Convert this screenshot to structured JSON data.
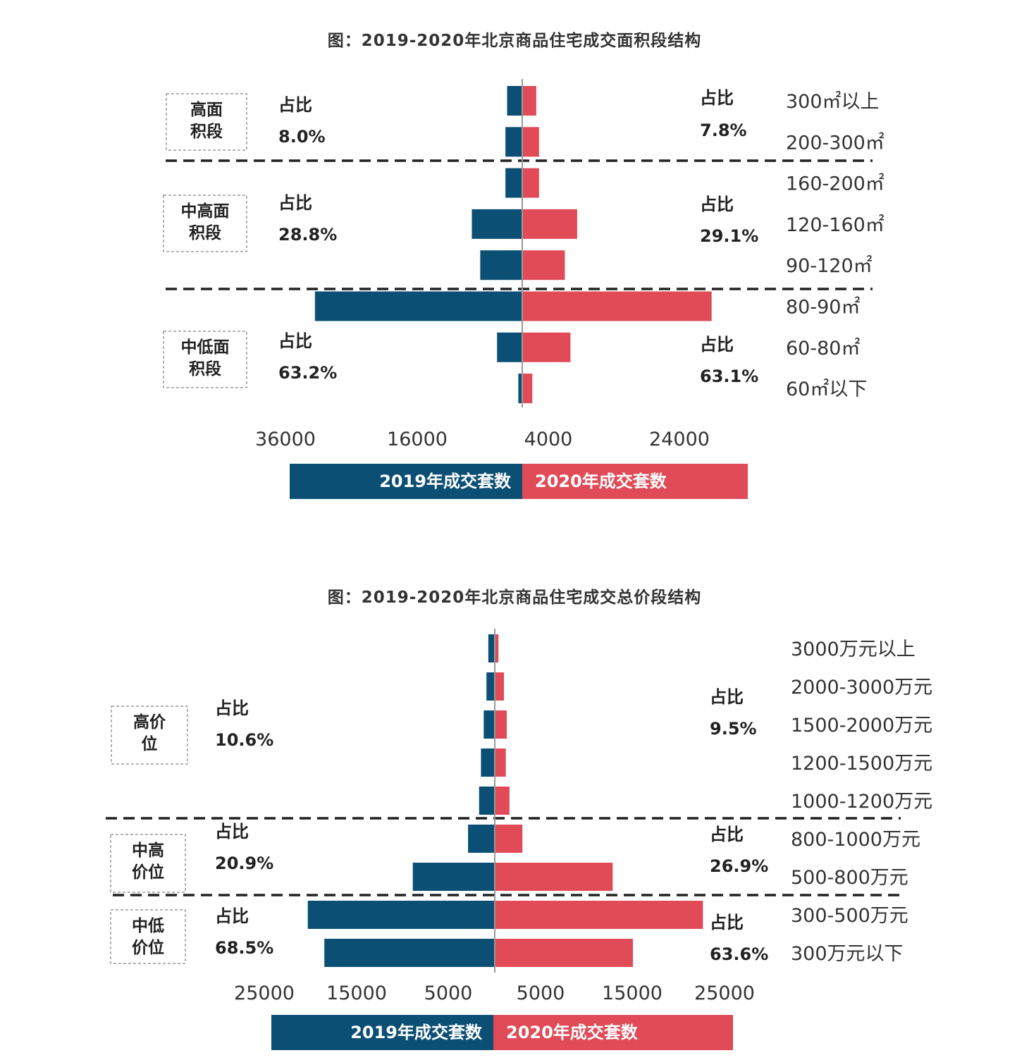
{
  "colors": {
    "y2019": "#0b4f74",
    "y2020": "#e04b57"
  },
  "chart_data": [
    {
      "type": "bar",
      "orientation": "horizontal-butterfly",
      "title": "图：2019-2020年北京商品住宅成交面积段结构",
      "categories": [
        "300㎡以上",
        "200-300㎡",
        "160-200㎡",
        "120-160㎡",
        "90-120㎡",
        "80-90㎡",
        "60-80㎡",
        "60㎡以下"
      ],
      "series": [
        {
          "name": "2019年成交套数",
          "side": "left",
          "values": [
            2700,
            3000,
            3000,
            9000,
            7500,
            37000,
            4500,
            700
          ]
        },
        {
          "name": "2020年成交套数",
          "side": "right",
          "values": [
            2500,
            3000,
            3000,
            9800,
            7600,
            33800,
            8600,
            1800
          ]
        }
      ],
      "ticks": [
        "36000",
        "16000",
        "4000",
        "24000"
      ],
      "segments": [
        {
          "name": "高面\n积段",
          "share_label": "占比",
          "share_2019": "8.0%",
          "share_2020": "7.8%",
          "rows": [
            0,
            1
          ]
        },
        {
          "name": "中高面\n积段",
          "share_label": "占比",
          "share_2019": "28.8%",
          "share_2020": "29.1%",
          "rows": [
            2,
            3,
            4
          ]
        },
        {
          "name": "中低面\n积段",
          "share_label": "占比",
          "share_2019": "63.2%",
          "share_2020": "63.1%",
          "rows": [
            5,
            6,
            7
          ]
        }
      ]
    },
    {
      "type": "bar",
      "orientation": "horizontal-butterfly",
      "title": "图：2019-2020年北京商品住宅成交总价段结构",
      "categories": [
        "3000万元以上",
        "2000-3000万元",
        "1500-2000万元",
        "1200-1500万元",
        "1000-1200万元",
        "800-1000万元",
        "500-800万元",
        "300-500万元",
        "300万元以下"
      ],
      "series": [
        {
          "name": "2019年成交套数",
          "side": "left",
          "values": [
            700,
            900,
            1200,
            1500,
            1700,
            2900,
            8900,
            20300,
            18500
          ]
        },
        {
          "name": "2020年成交套数",
          "side": "right",
          "values": [
            400,
            1000,
            1300,
            1200,
            1600,
            3000,
            12800,
            22600,
            15000
          ]
        }
      ],
      "ticks": [
        "25000",
        "15000",
        "5000",
        "5000",
        "15000",
        "25000"
      ],
      "segments": [
        {
          "name": "高价\n位",
          "share_label": "占比",
          "share_2019": "10.6%",
          "share_2020": "9.5%",
          "rows": [
            0,
            1,
            2,
            3,
            4
          ]
        },
        {
          "name": "中高\n价位",
          "share_label": "占比",
          "share_2019": "20.9%",
          "share_2020": "26.9%",
          "rows": [
            5,
            6
          ]
        },
        {
          "name": "中低\n价位",
          "share_label": "占比",
          "share_2019": "68.5%",
          "share_2020": "63.6%",
          "rows": [
            7,
            8
          ]
        }
      ]
    }
  ]
}
